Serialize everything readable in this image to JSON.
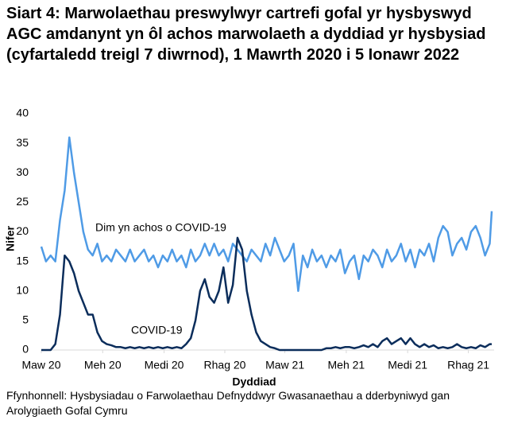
{
  "chart_data": {
    "type": "line",
    "title": "Siart 4: Marwolaethau preswylwyr cartrefi gofal yr hysbyswyd AGC amdanynt yn ôl achos marwolaeth a dyddiad yr hysbysiad (cyfartaledd treigl 7 diwrnod), 1 Mawrth 2020 i 5 Ionawr 2022",
    "x_label": "Dyddiad",
    "y_label": "Nifer",
    "source": "Ffynhonnell: Hysbysiadau o Farwolaethau Defnyddwyr Gwasanaethau a dderbyniwyd gan Arolygiaeth Gofal Cymru",
    "x": [
      0,
      7,
      14,
      21,
      28,
      35,
      42,
      49,
      56,
      63,
      70,
      77,
      84,
      91,
      98,
      105,
      112,
      119,
      126,
      133,
      140,
      147,
      154,
      161,
      168,
      175,
      182,
      189,
      196,
      203,
      210,
      217,
      224,
      231,
      238,
      245,
      252,
      259,
      266,
      273,
      280,
      287,
      294,
      301,
      308,
      315,
      322,
      329,
      336,
      343,
      350,
      357,
      364,
      371,
      378,
      385,
      392,
      399,
      406,
      413,
      420,
      427,
      434,
      441,
      448,
      455,
      462,
      469,
      476,
      483,
      490,
      497,
      504,
      511,
      518,
      525,
      532,
      539,
      546,
      553,
      560,
      567,
      574,
      581,
      588,
      595,
      602,
      609,
      616,
      623,
      630,
      637,
      644,
      651,
      658,
      665,
      672,
      675
    ],
    "xlim": [
      0,
      675
    ],
    "xticks": [
      {
        "value": 0,
        "label": "Maw 20"
      },
      {
        "value": 92,
        "label": "Meh 20"
      },
      {
        "value": 184,
        "label": "Medi 20"
      },
      {
        "value": 275,
        "label": "Rhag 20"
      },
      {
        "value": 365,
        "label": "Maw 21"
      },
      {
        "value": 457,
        "label": "Meh 21"
      },
      {
        "value": 549,
        "label": "Medi 21"
      },
      {
        "value": 640,
        "label": "Rhag 21"
      }
    ],
    "ylim": [
      0,
      40
    ],
    "yticks": [
      0,
      5,
      10,
      15,
      20,
      25,
      30,
      35,
      40
    ],
    "grid": false,
    "series": [
      {
        "name": "Dim yn achos o COVID-19",
        "color": "#4f9be6",
        "values": [
          17.5,
          15,
          16,
          15,
          22,
          27,
          36,
          30,
          25,
          20,
          17,
          16,
          18,
          15,
          16,
          15,
          17,
          16,
          15,
          17,
          15,
          16,
          17,
          15,
          16,
          14,
          16,
          15,
          17,
          15,
          16,
          14,
          17,
          15,
          16,
          18,
          16,
          18,
          16,
          17,
          15,
          18,
          17,
          16,
          15,
          17,
          16,
          15,
          18,
          16,
          19,
          17,
          15,
          16,
          18,
          10,
          16,
          14,
          17,
          15,
          16,
          14,
          16,
          15,
          17,
          13,
          15,
          16,
          12,
          16,
          15,
          17,
          16,
          14,
          17,
          15,
          16,
          18,
          15,
          17,
          14,
          17,
          16,
          18,
          15,
          19,
          21,
          20,
          16,
          18,
          19,
          17,
          20,
          21,
          19,
          16,
          18,
          23.5
        ]
      },
      {
        "name": "COVID-19",
        "color": "#0b2d5b",
        "values": [
          0,
          0,
          0,
          1,
          6,
          16,
          15,
          13,
          10,
          8,
          6,
          6,
          3,
          1.5,
          1,
          0.8,
          0.5,
          0.5,
          0.3,
          0.5,
          0.3,
          0.5,
          0.3,
          0.5,
          0.3,
          0.5,
          0.3,
          0.5,
          0.3,
          0.5,
          0.3,
          1,
          2,
          5,
          10,
          12,
          9,
          8,
          10,
          14,
          8,
          11,
          19,
          17,
          10,
          6,
          3,
          1.5,
          1,
          0.5,
          0.3,
          0,
          0,
          0,
          0,
          0,
          0,
          0,
          0,
          0,
          0,
          0.3,
          0.3,
          0.5,
          0.3,
          0.5,
          0.5,
          0.3,
          0.5,
          0.8,
          0.5,
          1,
          0.5,
          1.5,
          2,
          1,
          1.5,
          2,
          1,
          2,
          1,
          0.5,
          1,
          0.5,
          0.8,
          0.3,
          0.5,
          0.3,
          0.5,
          1,
          0.5,
          0.3,
          0.5,
          0.3,
          0.8,
          0.5,
          1,
          1
        ]
      }
    ]
  }
}
